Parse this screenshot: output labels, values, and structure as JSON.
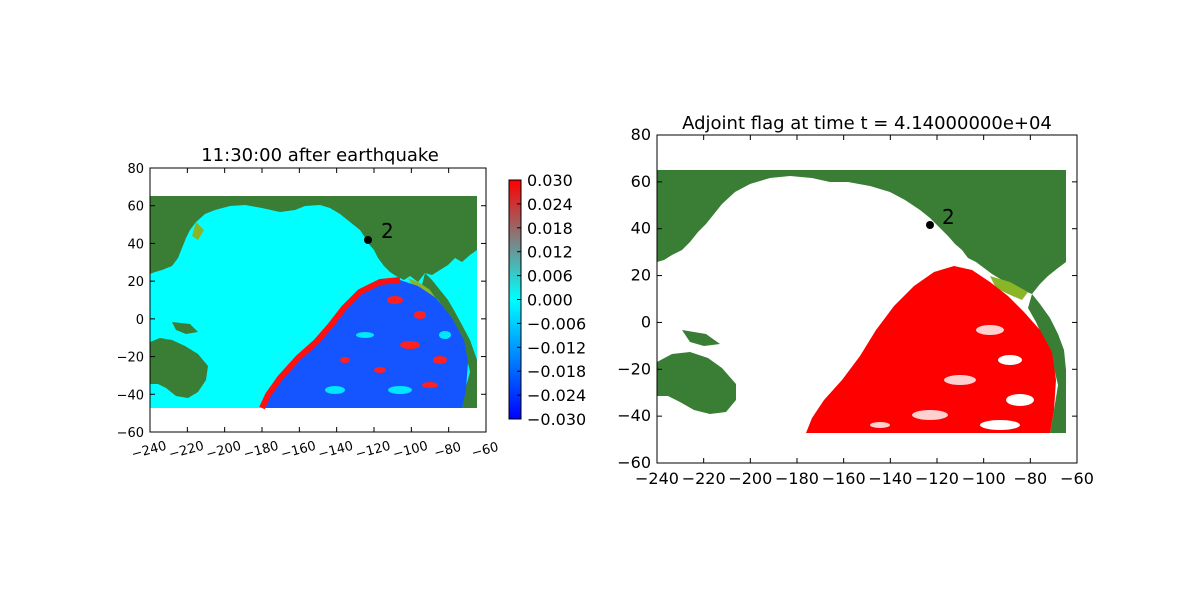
{
  "chart_data": [
    {
      "type": "heatmap",
      "title": "11:30:00 after earthquake",
      "xlabel": "",
      "ylabel": "",
      "xlim": [
        -240,
        -60
      ],
      "ylim": [
        -60,
        80
      ],
      "x_ticks": [
        "−240",
        "−220",
        "−200",
        "−180",
        "−160",
        "−140",
        "−120",
        "−100",
        "−80",
        "−60"
      ],
      "y_ticks": [
        "−60",
        "−40",
        "−20",
        "0",
        "20",
        "40",
        "60",
        "80"
      ],
      "data_extent": {
        "x": [
          -240,
          -65
        ],
        "y": [
          -47,
          65
        ]
      },
      "colorbar": {
        "range": [
          -0.03,
          0.03
        ],
        "ticks": [
          "0.030",
          "0.024",
          "0.018",
          "0.012",
          "0.006",
          "0.000",
          "−0.006",
          "−0.012",
          "−0.018",
          "−0.024",
          "−0.030"
        ]
      },
      "marker": {
        "label": "2",
        "x": -125,
        "y": 42
      },
      "colors": {
        "ocean": "#00ffff",
        "land": "#3a7d35",
        "land_light": "#8ab527",
        "wave_pos": "#ff1010",
        "wave_neg": "#1030ff",
        "gap": "#ffffff"
      }
    },
    {
      "type": "heatmap",
      "title": "Adjoint flag at time t = 4.14000000e+04",
      "xlabel": "",
      "ylabel": "",
      "xlim": [
        -240,
        -60
      ],
      "ylim": [
        -60,
        80
      ],
      "x_ticks": [
        "−240",
        "−220",
        "−200",
        "−180",
        "−160",
        "−140",
        "−120",
        "−100",
        "−80",
        "−60"
      ],
      "y_ticks": [
        "−60",
        "−40",
        "−20",
        "0",
        "20",
        "40",
        "60",
        "80"
      ],
      "data_extent": {
        "x": [
          -240,
          -65
        ],
        "y": [
          -47,
          65
        ]
      },
      "marker": {
        "label": "2",
        "x": -125,
        "y": 42
      },
      "colors": {
        "ocean": "#ffffff",
        "land": "#3a7d35",
        "land_light": "#8ab527",
        "flag": "#ff0000"
      }
    }
  ]
}
